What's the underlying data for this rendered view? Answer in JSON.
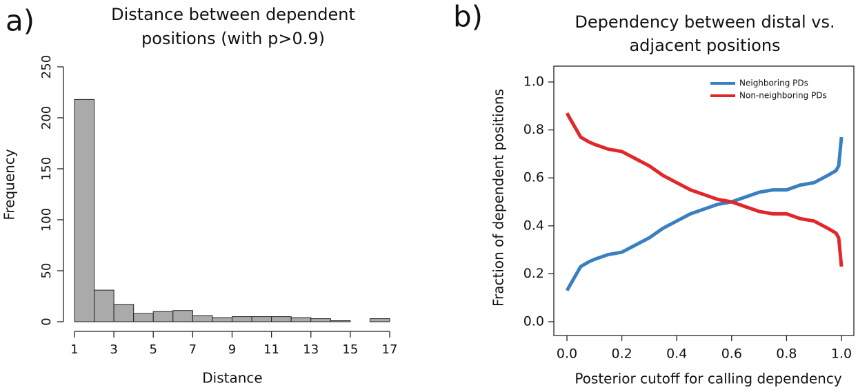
{
  "chart_data": [
    {
      "type": "histogram",
      "panel_label": "a)",
      "title": [
        "Distance between dependent",
        "positions (with p>0.9)"
      ],
      "xlabel": "Distance",
      "ylabel": "Frequency",
      "bins": [
        1,
        2,
        3,
        4,
        5,
        6,
        7,
        8,
        9,
        10,
        11,
        12,
        13,
        14,
        15,
        16,
        17
      ],
      "values": [
        218,
        31,
        17,
        8,
        10,
        11,
        6,
        4,
        5,
        5,
        5,
        4,
        3,
        1,
        0,
        3
      ],
      "color": "#aaaaaa",
      "xlim": [
        1,
        17
      ],
      "xticks": [
        1,
        3,
        5,
        7,
        9,
        11,
        13,
        15,
        17
      ],
      "ylim": [
        0,
        250
      ],
      "yticks": [
        0,
        50,
        100,
        150,
        200,
        250
      ]
    },
    {
      "type": "line",
      "panel_label": "b)",
      "title": [
        "Dependency between distal vs.",
        "adjacent positions"
      ],
      "xlabel": "Posterior cutoff for calling dependency",
      "ylabel": "Fraction of dependent positions",
      "x": [
        0,
        0.01,
        0.03,
        0.05,
        0.08,
        0.1,
        0.15,
        0.2,
        0.25,
        0.3,
        0.35,
        0.4,
        0.45,
        0.5,
        0.55,
        0.6,
        0.65,
        0.7,
        0.75,
        0.8,
        0.85,
        0.9,
        0.95,
        0.98,
        0.99,
        1.0
      ],
      "series": [
        {
          "name": "Neighboring PDs",
          "color": "#3a80c0",
          "values": [
            0.13,
            0.15,
            0.19,
            0.23,
            0.25,
            0.26,
            0.28,
            0.29,
            0.32,
            0.35,
            0.39,
            0.42,
            0.45,
            0.47,
            0.49,
            0.5,
            0.52,
            0.54,
            0.55,
            0.55,
            0.57,
            0.58,
            0.61,
            0.63,
            0.65,
            0.77
          ]
        },
        {
          "name": "Non-neighboring PDs",
          "color": "#e0282a",
          "values": [
            0.87,
            0.85,
            0.81,
            0.77,
            0.75,
            0.74,
            0.72,
            0.71,
            0.68,
            0.65,
            0.61,
            0.58,
            0.55,
            0.53,
            0.51,
            0.5,
            0.48,
            0.46,
            0.45,
            0.45,
            0.43,
            0.42,
            0.39,
            0.37,
            0.35,
            0.23
          ]
        }
      ],
      "legend": "top-right",
      "xlim": [
        0,
        1
      ],
      "xticks": [
        {
          "value": 0,
          "label": "0.0"
        },
        {
          "value": 0.2,
          "label": "0.2"
        },
        {
          "value": 0.4,
          "label": "0.4"
        },
        {
          "value": 0.6,
          "label": "0.6"
        },
        {
          "value": 0.8,
          "label": "0.8"
        },
        {
          "value": 1,
          "label": "1.0"
        }
      ],
      "ylim": [
        0,
        1
      ],
      "yticks": [
        {
          "value": 0,
          "label": "0.0"
        },
        {
          "value": 0.2,
          "label": "0.2"
        },
        {
          "value": 0.4,
          "label": "0.4"
        },
        {
          "value": 0.6,
          "label": "0.6"
        },
        {
          "value": 0.8,
          "label": "0.8"
        },
        {
          "value": 1,
          "label": "1.0"
        }
      ]
    }
  ]
}
